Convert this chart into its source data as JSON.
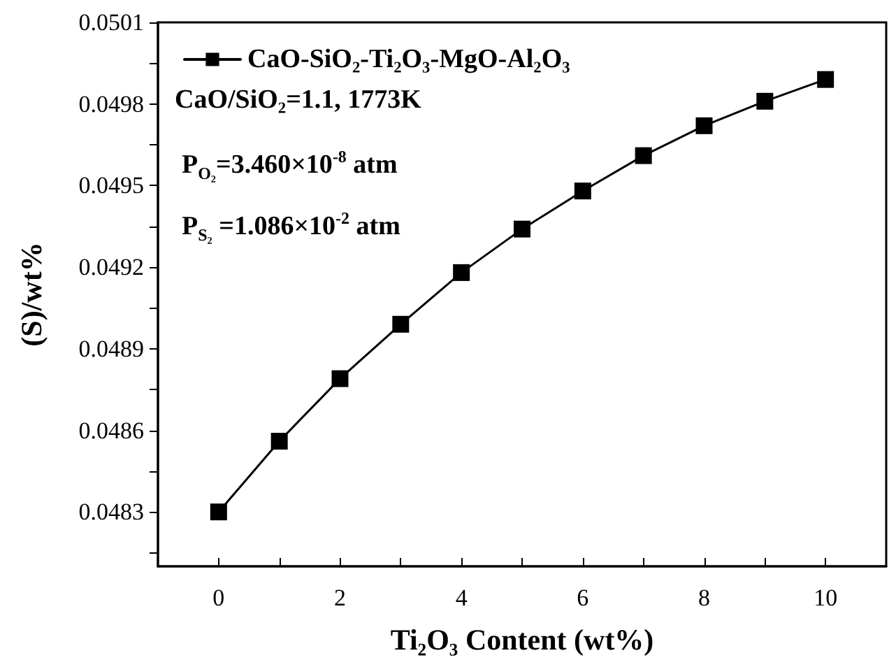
{
  "chart_data": {
    "type": "line",
    "xlabel": "Ti₂O₃ Content (wt%)",
    "ylabel": "(S)/wt%",
    "x": [
      0,
      1,
      2,
      3,
      4,
      5,
      6,
      7,
      8,
      9,
      10
    ],
    "series": [
      {
        "name": "CaO-SiO₂-Ti₂O₃-MgO-Al₂O₃",
        "color": "#000000",
        "values": [
          0.0483,
          0.04856,
          0.04879,
          0.04899,
          0.04918,
          0.04934,
          0.04948,
          0.04961,
          0.04972,
          0.04981,
          0.04989
        ]
      }
    ],
    "xlim": [
      -1,
      11
    ],
    "xticks": [
      0,
      {
        "value": 1,
        "label": null
      },
      2,
      {
        "value": 3,
        "label": null
      },
      4,
      {
        "value": 5,
        "label": null
      },
      6,
      {
        "value": 7,
        "label": null
      },
      8,
      {
        "value": 9,
        "label": null
      },
      10
    ],
    "ylim": [
      0.0481,
      0.0501
    ],
    "yticks": [
      {
        "value": 0.04815,
        "label": null
      },
      0.0483,
      {
        "value": 0.04845,
        "label": null
      },
      0.0486,
      {
        "value": 0.04875,
        "label": null
      },
      0.0489,
      {
        "value": 0.04905,
        "label": null
      },
      0.0492,
      {
        "value": 0.04935,
        "label": null
      },
      0.0495,
      {
        "value": 0.04965,
        "label": null
      },
      0.0498,
      {
        "value": 0.04995,
        "label": null
      },
      0.0501
    ],
    "annotations": [
      "CaO/SiO₂=1.1, 1773K",
      "P$_{O₂}$=3.460×10$^{-8}$ atm",
      "P$_{S₂}$ =1.086×10$^{-2}$ atm"
    ],
    "legend": "top left",
    "marker": "square",
    "line_style": "solid",
    "grid": false
  }
}
